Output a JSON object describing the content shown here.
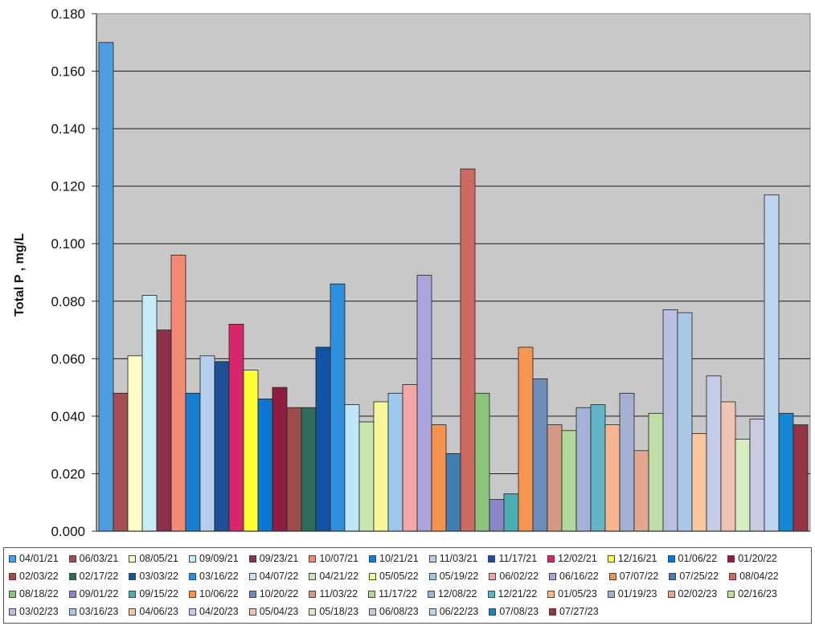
{
  "chart_data": {
    "type": "bar",
    "title": "",
    "xlabel": "",
    "ylabel": "Total P , mg/L",
    "ylim": [
      0,
      0.18
    ],
    "yticks": [
      "0.000",
      "0.020",
      "0.040",
      "0.060",
      "0.080",
      "0.100",
      "0.120",
      "0.140",
      "0.160",
      "0.180"
    ],
    "grid": true,
    "legend_position": "bottom",
    "plot_background": "#c8c8c8",
    "series": [
      {
        "name": "04/01/21",
        "value": 0.17,
        "color": "#4e9ce0"
      },
      {
        "name": "06/03/21",
        "value": 0.048,
        "color": "#a54d52"
      },
      {
        "name": "08/05/21",
        "value": 0.061,
        "color": "#fdfdc8"
      },
      {
        "name": "09/09/21",
        "value": 0.082,
        "color": "#c6ecf7"
      },
      {
        "name": "09/23/21",
        "value": 0.07,
        "color": "#8e2f4c"
      },
      {
        "name": "10/07/21",
        "value": 0.096,
        "color": "#f28a74"
      },
      {
        "name": "10/21/21",
        "value": 0.048,
        "color": "#1a7ccc"
      },
      {
        "name": "11/03/21",
        "value": 0.061,
        "color": "#b7cfee"
      },
      {
        "name": "11/17/21",
        "value": 0.059,
        "color": "#1d4f94"
      },
      {
        "name": "12/02/21",
        "value": 0.072,
        "color": "#d8266a"
      },
      {
        "name": "12/16/21",
        "value": 0.056,
        "color": "#ffff33"
      },
      {
        "name": "01/06/22",
        "value": 0.046,
        "color": "#0a78d2"
      },
      {
        "name": "01/20/22",
        "value": 0.05,
        "color": "#8f1d3f"
      },
      {
        "name": "02/03/22",
        "value": 0.043,
        "color": "#9c4c4c"
      },
      {
        "name": "02/17/22",
        "value": 0.043,
        "color": "#2e6b5a"
      },
      {
        "name": "03/03/22",
        "value": 0.064,
        "color": "#1353a6"
      },
      {
        "name": "03/16/22",
        "value": 0.086,
        "color": "#2e8fdc"
      },
      {
        "name": "04/07/22",
        "value": 0.044,
        "color": "#bfe6f8"
      },
      {
        "name": "04/21/22",
        "value": 0.038,
        "color": "#c8e8b0"
      },
      {
        "name": "05/05/22",
        "value": 0.045,
        "color": "#f7f79a"
      },
      {
        "name": "05/19/22",
        "value": 0.048,
        "color": "#9ccaee"
      },
      {
        "name": "06/02/22",
        "value": 0.051,
        "color": "#f2a6a6"
      },
      {
        "name": "06/16/22",
        "value": 0.089,
        "color": "#a9a4dc"
      },
      {
        "name": "07/07/22",
        "value": 0.037,
        "color": "#f5934f"
      },
      {
        "name": "07/25/22",
        "value": 0.027,
        "color": "#3f7fb1"
      },
      {
        "name": "08/04/22",
        "value": 0.126,
        "color": "#cf6a62"
      },
      {
        "name": "08/18/22",
        "value": 0.048,
        "color": "#8cc37d"
      },
      {
        "name": "09/01/22",
        "value": 0.011,
        "color": "#8b86c8"
      },
      {
        "name": "09/15/22",
        "value": 0.013,
        "color": "#4aaeb5"
      },
      {
        "name": "10/06/22",
        "value": 0.064,
        "color": "#f5954f"
      },
      {
        "name": "10/20/22",
        "value": 0.053,
        "color": "#6d8cb8"
      },
      {
        "name": "11/03/22",
        "value": 0.037,
        "color": "#d49a84"
      },
      {
        "name": "11/17/22",
        "value": 0.035,
        "color": "#b3d89b"
      },
      {
        "name": "12/08/22",
        "value": 0.043,
        "color": "#a3b2d6"
      },
      {
        "name": "12/21/22",
        "value": 0.044,
        "color": "#63b5c6"
      },
      {
        "name": "01/05/23",
        "value": 0.037,
        "color": "#f7b590"
      },
      {
        "name": "01/19/23",
        "value": 0.048,
        "color": "#a3b0d2"
      },
      {
        "name": "02/02/23",
        "value": 0.028,
        "color": "#e1a88f"
      },
      {
        "name": "02/16/23",
        "value": 0.041,
        "color": "#bfdea5"
      },
      {
        "name": "03/02/23",
        "value": 0.077,
        "color": "#b9bfe0"
      },
      {
        "name": "03/16/23",
        "value": 0.076,
        "color": "#a9c8e6"
      },
      {
        "name": "04/06/23",
        "value": 0.034,
        "color": "#f8c69f"
      },
      {
        "name": "04/20/23",
        "value": 0.054,
        "color": "#c4cbe8"
      },
      {
        "name": "05/04/23",
        "value": 0.045,
        "color": "#f0c4b4"
      },
      {
        "name": "05/18/23",
        "value": 0.032,
        "color": "#d6ecc2"
      },
      {
        "name": "06/08/23",
        "value": 0.039,
        "color": "#c9c9df"
      },
      {
        "name": "06/22/23",
        "value": 0.117,
        "color": "#bcd4ee"
      },
      {
        "name": "07/08/23",
        "value": 0.041,
        "color": "#1585d6"
      },
      {
        "name": "07/27/23",
        "value": 0.037,
        "color": "#973443"
      }
    ]
  }
}
